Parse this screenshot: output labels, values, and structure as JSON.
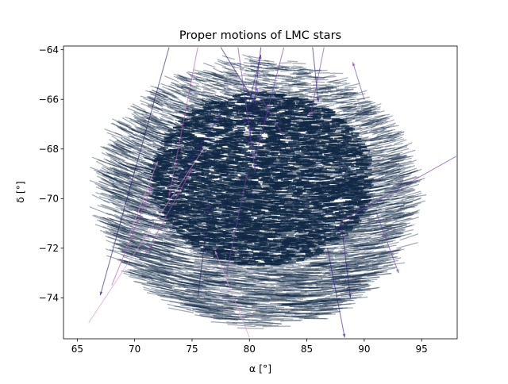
{
  "chart_data": {
    "type": "quiver",
    "title": "Proper motions of LMC stars",
    "xlabel": "α [°]",
    "ylabel": "δ [°]",
    "xlim": [
      63.8,
      98.1
    ],
    "ylim": [
      -75.65,
      -63.85
    ],
    "xticks": [
      65,
      70,
      75,
      80,
      85,
      90,
      95
    ],
    "yticks": [
      -74,
      -72,
      -70,
      -68,
      -66,
      -64
    ],
    "xtick_labels": [
      "65",
      "70",
      "75",
      "80",
      "85",
      "90",
      "95"
    ],
    "ytick_labels": [
      "−74",
      "−72",
      "−70",
      "−68",
      "−66",
      "−64"
    ],
    "grid": false,
    "legend": "none",
    "field": {
      "center": [
        81.5,
        -69.8
      ],
      "radius_ra": 13.5,
      "radius_dec": 5.3,
      "core_center": [
        81.5,
        -69.2
      ],
      "core_radius_ra": 9.5,
      "core_radius_dec": 3.5,
      "typical_arrow": [
        -1.6,
        0.06
      ],
      "arrow_color": "#102845",
      "outlier_colors": [
        "#3a1a8c",
        "#7b3fb0",
        "#c050c0",
        "#e090d8",
        "#2a2070"
      ]
    },
    "outliers": [
      {
        "x": 66.0,
        "y": -75.0,
        "u": 10.0,
        "v": 7.0,
        "c": 3
      },
      {
        "x": 80.0,
        "y": -75.6,
        "u": -3.0,
        "v": 3.5,
        "c": 3
      },
      {
        "x": 98.0,
        "y": -68.3,
        "u": -10.0,
        "v": -2.6,
        "c": 1
      },
      {
        "x": 73.0,
        "y": -63.9,
        "u": -6.0,
        "v": -10.0,
        "c": 4
      },
      {
        "x": 75.5,
        "y": -63.9,
        "u": -2.5,
        "v": -6.0,
        "c": 2
      },
      {
        "x": 77.5,
        "y": -63.9,
        "u": 4.0,
        "v": -3.0,
        "c": 0
      },
      {
        "x": 79.0,
        "y": -63.9,
        "u": 1.5,
        "v": -5.0,
        "c": 1
      },
      {
        "x": 81.0,
        "y": -63.9,
        "u": -1.0,
        "v": -3.8,
        "c": 0
      },
      {
        "x": 83.0,
        "y": -63.9,
        "u": -2.5,
        "v": -4.5,
        "c": 1
      },
      {
        "x": 85.5,
        "y": -63.9,
        "u": 0.5,
        "v": -2.2,
        "c": 4
      },
      {
        "x": 86.5,
        "y": -63.9,
        "u": -1.2,
        "v": -2.8,
        "c": 1
      },
      {
        "x": 86.8,
        "y": -72.0,
        "u": 1.5,
        "v": -3.6,
        "c": 0
      },
      {
        "x": 78.0,
        "y": -73.0,
        "u": 1.8,
        "v": 4.0,
        "c": 1
      },
      {
        "x": 71.0,
        "y": -72.2,
        "u": 4.0,
        "v": 3.4,
        "c": 2
      },
      {
        "x": 73.5,
        "y": -69.4,
        "u": 4.0,
        "v": 2.8,
        "c": 0
      },
      {
        "x": 79.5,
        "y": -67.0,
        "u": 1.5,
        "v": 2.8,
        "c": 0
      },
      {
        "x": 83.0,
        "y": -67.5,
        "u": -2.5,
        "v": 2.0,
        "c": 1
      },
      {
        "x": 90.0,
        "y": -66.0,
        "u": -1.0,
        "v": 1.5,
        "c": 1
      },
      {
        "x": 69.5,
        "y": -71.5,
        "u": 2.5,
        "v": 3.0,
        "c": 3
      },
      {
        "x": 75.5,
        "y": -74.0,
        "u": 1.0,
        "v": 3.8,
        "c": 4
      },
      {
        "x": 88.0,
        "y": -71.0,
        "u": 0.8,
        "v": -3.0,
        "c": 0
      },
      {
        "x": 68.0,
        "y": -73.5,
        "u": 3.5,
        "v": 4.0,
        "c": 2
      },
      {
        "x": 91.0,
        "y": -70.5,
        "u": 2.0,
        "v": -2.5,
        "c": 1
      }
    ]
  }
}
